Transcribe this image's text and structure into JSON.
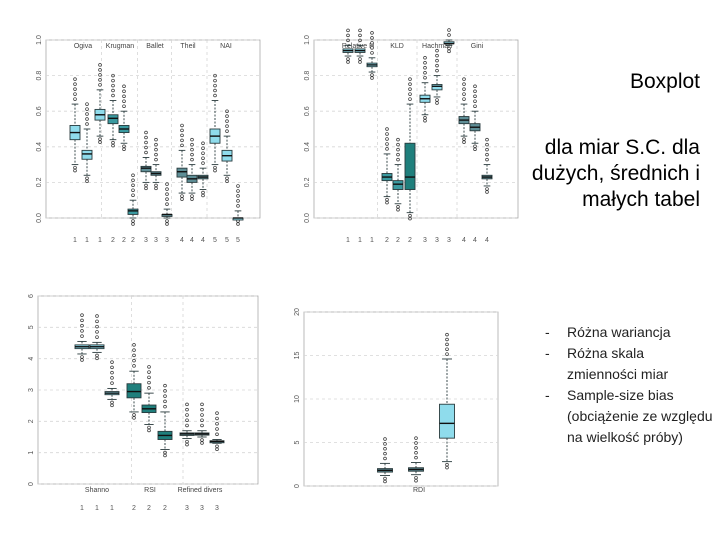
{
  "slide": {
    "title": "Boxplot",
    "subtitle": "dla miar S.C. dla dużych, średnich i małych tabel",
    "bullets": [
      "Różna wariancja",
      "Różna skala zmienności miar",
      "Sample-size bias (obciążenie ze względu na wielkość próby)"
    ]
  },
  "colors": {
    "light": "#8fdcec",
    "mid": "#3a9aa0",
    "dark": "#1f7f7c",
    "steel": "#5e8e96",
    "outline": "#2a3b3d",
    "grid": "#d6d6d6",
    "outlier": "#333333"
  },
  "chart_data": [
    {
      "type": "boxplot",
      "name": "panel-top-left",
      "ylim": [
        0,
        1
      ],
      "yticks": [
        0,
        0.2,
        0.4,
        0.6,
        0.8,
        1.0
      ],
      "ytick_labels": [
        "0.0",
        "0.2",
        "0.4",
        "0.6",
        "0.8",
        "1.0"
      ],
      "xtick_labels": [
        "1",
        "1",
        "1",
        "2",
        "2",
        "2",
        "3",
        "3",
        "3",
        "4",
        "4",
        "4",
        "5",
        "5",
        "5"
      ],
      "group_labels": [
        "Ogiva",
        "Krugman",
        "Ballet",
        "Theil",
        "NAI"
      ],
      "boxes": [
        {
          "q1": 0.44,
          "med": 0.48,
          "q3": 0.52,
          "wlo": 0.3,
          "whi": 0.64,
          "color": "light"
        },
        {
          "q1": 0.33,
          "med": 0.36,
          "q3": 0.38,
          "wlo": 0.24,
          "whi": 0.5,
          "color": "light"
        },
        {
          "q1": 0.55,
          "med": 0.58,
          "q3": 0.61,
          "wlo": 0.46,
          "whi": 0.72,
          "color": "light"
        },
        {
          "q1": 0.53,
          "med": 0.56,
          "q3": 0.58,
          "wlo": 0.44,
          "whi": 0.66,
          "color": "mid"
        },
        {
          "q1": 0.48,
          "med": 0.5,
          "q3": 0.52,
          "wlo": 0.42,
          "whi": 0.6,
          "color": "mid"
        },
        {
          "q1": 0.02,
          "med": 0.04,
          "q3": 0.05,
          "wlo": 0.0,
          "whi": 0.1,
          "color": "mid"
        },
        {
          "q1": 0.26,
          "med": 0.28,
          "q3": 0.29,
          "wlo": 0.2,
          "whi": 0.34,
          "color": "steel"
        },
        {
          "q1": 0.24,
          "med": 0.25,
          "q3": 0.26,
          "wlo": 0.2,
          "whi": 0.3,
          "color": "steel"
        },
        {
          "q1": 0.01,
          "med": 0.02,
          "q3": 0.02,
          "wlo": 0.0,
          "whi": 0.05,
          "color": "steel"
        },
        {
          "q1": 0.23,
          "med": 0.26,
          "q3": 0.28,
          "wlo": 0.14,
          "whi": 0.38,
          "color": "steel"
        },
        {
          "q1": 0.2,
          "med": 0.22,
          "q3": 0.24,
          "wlo": 0.14,
          "whi": 0.3,
          "color": "steel"
        },
        {
          "q1": 0.22,
          "med": 0.23,
          "q3": 0.24,
          "wlo": 0.16,
          "whi": 0.28,
          "color": "steel"
        },
        {
          "q1": 0.42,
          "med": 0.46,
          "q3": 0.5,
          "wlo": 0.3,
          "whi": 0.66,
          "color": "light"
        },
        {
          "q1": 0.32,
          "med": 0.35,
          "q3": 0.38,
          "wlo": 0.24,
          "whi": 0.46,
          "color": "light"
        },
        {
          "q1": 0.0,
          "med": 0.0,
          "q3": 0.0,
          "wlo": 0.0,
          "whi": 0.04,
          "color": "light"
        }
      ]
    },
    {
      "type": "boxplot",
      "name": "panel-top-right",
      "ylim": [
        0,
        1
      ],
      "yticks": [
        0,
        0.2,
        0.4,
        0.6,
        0.8,
        1.0
      ],
      "ytick_labels": [
        "0.0",
        "0.2",
        "0.4",
        "0.6",
        "0.8",
        "1.0"
      ],
      "xtick_labels": [
        "1",
        "1",
        "1",
        "2",
        "2",
        "2",
        "3",
        "3",
        "3",
        "4",
        "4",
        "4"
      ],
      "group_labels": [
        "Relative H",
        "KLD",
        "Hachman",
        "Gini"
      ],
      "boxes": [
        {
          "q1": 0.93,
          "med": 0.94,
          "q3": 0.95,
          "wlo": 0.91,
          "whi": 0.97,
          "color": "light"
        },
        {
          "q1": 0.93,
          "med": 0.94,
          "q3": 0.95,
          "wlo": 0.91,
          "whi": 0.97,
          "color": "light"
        },
        {
          "q1": 0.85,
          "med": 0.86,
          "q3": 0.87,
          "wlo": 0.82,
          "whi": 0.9,
          "color": "light"
        },
        {
          "q1": 0.21,
          "med": 0.23,
          "q3": 0.25,
          "wlo": 0.12,
          "whi": 0.36,
          "color": "mid"
        },
        {
          "q1": 0.16,
          "med": 0.19,
          "q3": 0.21,
          "wlo": 0.08,
          "whi": 0.3,
          "color": "mid"
        },
        {
          "q1": 0.16,
          "med": 0.23,
          "q3": 0.42,
          "wlo": 0.03,
          "whi": 0.64,
          "color": "dark"
        },
        {
          "q1": 0.65,
          "med": 0.67,
          "q3": 0.69,
          "wlo": 0.58,
          "whi": 0.76,
          "color": "light"
        },
        {
          "q1": 0.72,
          "med": 0.74,
          "q3": 0.75,
          "wlo": 0.68,
          "whi": 0.8,
          "color": "light"
        },
        {
          "q1": 0.98,
          "med": 0.98,
          "q3": 0.99,
          "wlo": 0.97,
          "whi": 1.0,
          "color": "light"
        },
        {
          "q1": 0.53,
          "med": 0.55,
          "q3": 0.57,
          "wlo": 0.46,
          "whi": 0.64,
          "color": "steel"
        },
        {
          "q1": 0.49,
          "med": 0.51,
          "q3": 0.53,
          "wlo": 0.42,
          "whi": 0.6,
          "color": "steel"
        },
        {
          "q1": 0.22,
          "med": 0.23,
          "q3": 0.24,
          "wlo": 0.18,
          "whi": 0.3,
          "color": "steel"
        }
      ]
    },
    {
      "type": "boxplot",
      "name": "panel-bottom-left",
      "ylim": [
        0,
        6
      ],
      "yticks": [
        0,
        1,
        2,
        3,
        4,
        5,
        6
      ],
      "ytick_labels": [
        "0",
        "1",
        "2",
        "3",
        "4",
        "5",
        "6"
      ],
      "xtick_labels": [
        "1",
        "1",
        "1",
        "2",
        "2",
        "2",
        "3",
        "3",
        "3"
      ],
      "group_labels": [
        "Shanno",
        "RSI",
        "Refined divers"
      ],
      "boxes": [
        {
          "q1": 4.32,
          "med": 4.38,
          "q3": 4.44,
          "wlo": 4.15,
          "whi": 4.55,
          "color": "light"
        },
        {
          "q1": 4.32,
          "med": 4.38,
          "q3": 4.44,
          "wlo": 4.2,
          "whi": 4.52,
          "color": "light"
        },
        {
          "q1": 2.85,
          "med": 2.9,
          "q3": 2.95,
          "wlo": 2.7,
          "whi": 3.05,
          "color": "light"
        },
        {
          "q1": 2.75,
          "med": 2.95,
          "q3": 3.2,
          "wlo": 2.3,
          "whi": 3.6,
          "color": "dark"
        },
        {
          "q1": 2.28,
          "med": 2.4,
          "q3": 2.52,
          "wlo": 1.9,
          "whi": 2.9,
          "color": "dark"
        },
        {
          "q1": 1.42,
          "med": 1.55,
          "q3": 1.68,
          "wlo": 1.1,
          "whi": 2.3,
          "color": "dark"
        },
        {
          "q1": 1.55,
          "med": 1.6,
          "q3": 1.63,
          "wlo": 1.45,
          "whi": 1.7,
          "color": "steel"
        },
        {
          "q1": 1.56,
          "med": 1.6,
          "q3": 1.63,
          "wlo": 1.5,
          "whi": 1.7,
          "color": "steel"
        },
        {
          "q1": 1.34,
          "med": 1.36,
          "q3": 1.38,
          "wlo": 1.3,
          "whi": 1.42,
          "color": "steel"
        }
      ]
    },
    {
      "type": "boxplot",
      "name": "panel-bottom-right",
      "ylim": [
        0,
        20
      ],
      "yticks": [
        0,
        5,
        10,
        15,
        20
      ],
      "ytick_labels": [
        "0",
        "5",
        "10",
        "15",
        "20"
      ],
      "xtick_labels": [],
      "group_labels": [
        "RDI"
      ],
      "boxes": [
        {
          "q1": 1.6,
          "med": 1.8,
          "q3": 2.0,
          "wlo": 1.2,
          "whi": 2.6,
          "color": "steel"
        },
        {
          "q1": 1.7,
          "med": 1.9,
          "q3": 2.1,
          "wlo": 1.3,
          "whi": 2.7,
          "color": "steel"
        },
        {
          "q1": 5.5,
          "med": 7.2,
          "q3": 9.4,
          "wlo": 2.8,
          "whi": 14.6,
          "color": "light"
        }
      ]
    }
  ]
}
